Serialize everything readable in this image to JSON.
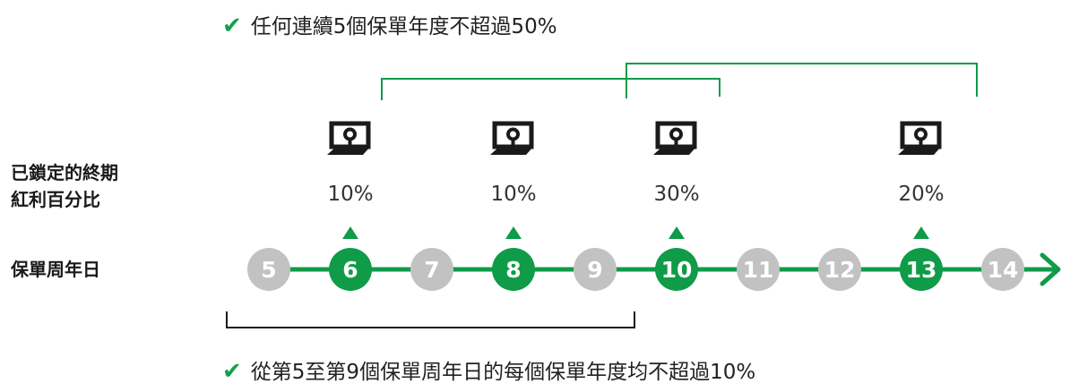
{
  "top_note": {
    "check_icon": "check-icon",
    "text": "任何連續5個保單年度不超過50%"
  },
  "bottom_note": {
    "check_icon": "check-icon",
    "text": "從第5至第9個保單周年日的每個保單年度均不超過10%"
  },
  "side_labels": {
    "bonus_line1": "已鎖定的終期",
    "bonus_line2": "紅利百分比",
    "anniversary": "保單周年日"
  },
  "colors": {
    "green": "#0f9b48",
    "gray": "#c2c2c2",
    "dark": "#1a1a1a"
  },
  "timeline": {
    "nodes": [
      {
        "label": "5",
        "active": false
      },
      {
        "label": "6",
        "active": true,
        "lock_percent": "10%"
      },
      {
        "label": "7",
        "active": false
      },
      {
        "label": "8",
        "active": true,
        "lock_percent": "10%"
      },
      {
        "label": "9",
        "active": false
      },
      {
        "label": "10",
        "active": true,
        "lock_percent": "30%"
      },
      {
        "label": "11",
        "active": false
      },
      {
        "label": "12",
        "active": false
      },
      {
        "label": "13",
        "active": true,
        "lock_percent": "20%"
      },
      {
        "label": "14",
        "active": false
      }
    ]
  },
  "brackets": {
    "top_green": [
      {
        "from_node": "6",
        "to_node": "10"
      },
      {
        "from_node": "9",
        "to_node": "13"
      }
    ],
    "bottom_dark": {
      "from_node": "5",
      "to_node": "9"
    }
  }
}
